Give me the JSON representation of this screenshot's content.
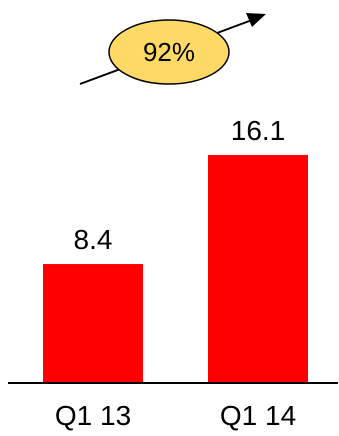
{
  "chart_data": {
    "type": "bar",
    "categories": [
      "Q1 13",
      "Q1 14"
    ],
    "values": [
      8.4,
      16.1
    ],
    "data_labels": [
      "8.4",
      "16.1"
    ],
    "ylim": [
      0,
      16.1
    ],
    "grid": false,
    "legend": "none",
    "bar_color": "#ff0000",
    "annotation": {
      "text": "92%",
      "shape": "ellipse",
      "fill": "#ffd966",
      "stroke": "#000000",
      "arrow": "up-right"
    }
  }
}
